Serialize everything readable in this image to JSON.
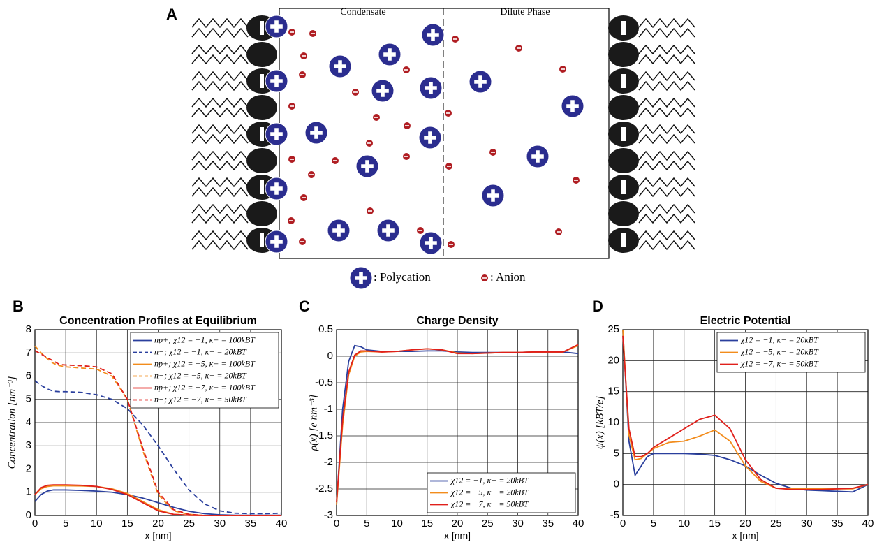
{
  "diagram": {
    "panel": "A",
    "condensate_label": "Condensate",
    "dilute_label": "Dilute Phase",
    "polycation_label": ": Polycation",
    "anion_label": ": Anion"
  },
  "chart_data": [
    {
      "type": "line",
      "panel": "B",
      "title": "Concentration Profiles at Equilibrium",
      "xlabel": "x [nm]",
      "ylabel": "Concentration [nm⁻³]",
      "x": [
        0,
        1,
        2,
        3,
        4,
        5,
        7.5,
        10,
        12.5,
        15,
        17.5,
        20,
        22.5,
        25,
        27.5,
        30,
        32.5,
        35,
        37.5,
        40
      ],
      "xlim": [
        0,
        40
      ],
      "xticks": [
        0,
        5,
        10,
        15,
        20,
        25,
        30,
        35,
        40
      ],
      "ylim": [
        0,
        8
      ],
      "yticks": [
        0,
        1,
        2,
        3,
        4,
        5,
        6,
        7,
        8
      ],
      "grid": true,
      "legend": "upper right",
      "series": [
        {
          "name": "np+; χ12 = −1, κ+ = 100kBT",
          "color": "#2a3f9d",
          "dashed": false,
          "values": [
            0.6,
            0.9,
            1.05,
            1.1,
            1.1,
            1.1,
            1.08,
            1.05,
            1.0,
            0.9,
            0.75,
            0.55,
            0.35,
            0.18,
            0.08,
            0.03,
            0.01,
            0.01,
            0.01,
            0.01
          ]
        },
        {
          "name": "n−; χ12 = −1, κ− = 20kBT",
          "color": "#2a3f9d",
          "dashed": true,
          "values": [
            5.8,
            5.6,
            5.45,
            5.35,
            5.33,
            5.33,
            5.3,
            5.2,
            5.0,
            4.6,
            3.9,
            3.0,
            2.0,
            1.1,
            0.5,
            0.2,
            0.1,
            0.08,
            0.08,
            0.1
          ]
        },
        {
          "name": "np+; χ12 = −5, κ+ = 100kBT",
          "color": "#f28c1c",
          "dashed": false,
          "values": [
            0.9,
            1.15,
            1.25,
            1.28,
            1.28,
            1.28,
            1.27,
            1.25,
            1.15,
            0.95,
            0.6,
            0.25,
            0.05,
            0.01,
            0,
            0,
            0,
            0,
            0,
            0
          ]
        },
        {
          "name": "n−; χ12 = −5, κ− = 20kBT",
          "color": "#f28c1c",
          "dashed": true,
          "values": [
            7.3,
            7.0,
            6.75,
            6.55,
            6.45,
            6.4,
            6.35,
            6.3,
            6.0,
            5.0,
            2.8,
            0.9,
            0.2,
            0.05,
            0,
            0,
            0,
            0,
            0,
            0
          ]
        },
        {
          "name": "np+; χ12 = −7, κ+ = 100kBT",
          "color": "#e0201b",
          "dashed": false,
          "values": [
            0.9,
            1.2,
            1.3,
            1.32,
            1.32,
            1.32,
            1.3,
            1.25,
            1.12,
            0.9,
            0.55,
            0.2,
            0.05,
            0.01,
            0,
            0,
            0,
            0,
            0,
            0
          ]
        },
        {
          "name": "n−; χ12 = −7, κ− = 50kBT",
          "color": "#e0201b",
          "dashed": true,
          "values": [
            7.1,
            6.95,
            6.8,
            6.65,
            6.5,
            6.48,
            6.45,
            6.4,
            6.1,
            5.0,
            2.9,
            1.0,
            0.25,
            0.05,
            0,
            0,
            0,
            0,
            0,
            0
          ]
        }
      ]
    },
    {
      "type": "line",
      "panel": "C",
      "title": "Charge Density",
      "xlabel": "x [nm]",
      "ylabel": "ρ(x) [e nm⁻³]",
      "x": [
        0,
        1,
        2,
        3,
        4,
        5,
        7.5,
        10,
        12.5,
        15,
        17.5,
        20,
        22.5,
        25,
        27.5,
        30,
        32.5,
        35,
        37.5,
        40
      ],
      "xlim": [
        0,
        40
      ],
      "xticks": [
        0,
        5,
        10,
        15,
        20,
        25,
        30,
        35,
        40
      ],
      "ylim": [
        -3,
        0.5
      ],
      "yticks": [
        -3,
        -2.5,
        -2,
        -1.5,
        -1,
        -0.5,
        0,
        0.5
      ],
      "grid": true,
      "legend": "lower right",
      "series": [
        {
          "name": "χ12 = −1, κ− = 20kBT",
          "color": "#2a3f9d",
          "dashed": false,
          "values": [
            -2.8,
            -1.0,
            -0.1,
            0.2,
            0.18,
            0.12,
            0.09,
            0.09,
            0.09,
            0.1,
            0.1,
            0.08,
            0.07,
            0.07,
            0.07,
            0.07,
            0.08,
            0.08,
            0.08,
            0.05
          ]
        },
        {
          "name": "χ12 = −5, κ− = 20kBT",
          "color": "#f28c1c",
          "dashed": false,
          "values": [
            -2.8,
            -1.3,
            -0.35,
            0.0,
            0.08,
            0.09,
            0.08,
            0.09,
            0.12,
            0.14,
            0.12,
            0.06,
            0.05,
            0.06,
            0.07,
            0.07,
            0.08,
            0.08,
            0.08,
            0.2
          ]
        },
        {
          "name": "χ12 = −7, κ− = 50kBT",
          "color": "#e0201b",
          "dashed": false,
          "values": [
            -2.75,
            -1.2,
            -0.3,
            0.02,
            0.1,
            0.1,
            0.08,
            0.09,
            0.12,
            0.14,
            0.12,
            0.05,
            0.05,
            0.06,
            0.07,
            0.07,
            0.08,
            0.08,
            0.08,
            0.22
          ]
        }
      ]
    },
    {
      "type": "line",
      "panel": "D",
      "title": "Electric Potential",
      "xlabel": "x [nm]",
      "ylabel": "ψ(x) [kBT/e]",
      "x": [
        0,
        1,
        2,
        3,
        4,
        5,
        7.5,
        10,
        12.5,
        15,
        17.5,
        20,
        22.5,
        25,
        27.5,
        30,
        32.5,
        35,
        37.5,
        40
      ],
      "xlim": [
        0,
        40
      ],
      "xticks": [
        0,
        5,
        10,
        15,
        20,
        25,
        30,
        35,
        40
      ],
      "ylim": [
        -5,
        25
      ],
      "yticks": [
        -5,
        0,
        5,
        10,
        15,
        20,
        25
      ],
      "grid": true,
      "legend": "upper right",
      "series": [
        {
          "name": "χ12 = −1, κ− = 20kBT",
          "color": "#2a3f9d",
          "dashed": false,
          "values": [
            25,
            7,
            1.5,
            3,
            4.5,
            5,
            5,
            5,
            4.9,
            4.7,
            4,
            3,
            1.5,
            0.2,
            -0.6,
            -0.9,
            -1.0,
            -1.1,
            -1.2,
            0
          ]
        },
        {
          "name": "χ12 = −5, κ− = 20kBT",
          "color": "#f28c1c",
          "dashed": false,
          "values": [
            25,
            8,
            4,
            4.2,
            5,
            5.8,
            6.8,
            7.0,
            7.8,
            8.8,
            7,
            3,
            0.5,
            -0.6,
            -0.7,
            -0.7,
            -0.7,
            -0.7,
            -0.7,
            0
          ]
        },
        {
          "name": "χ12 = −7, κ− = 50kBT",
          "color": "#e0201b",
          "dashed": false,
          "values": [
            24,
            9,
            4.5,
            4.5,
            5,
            6,
            7.5,
            9,
            10.5,
            11.2,
            9,
            4,
            0.8,
            -0.6,
            -0.8,
            -0.8,
            -0.8,
            -0.7,
            -0.6,
            0
          ]
        }
      ]
    }
  ]
}
